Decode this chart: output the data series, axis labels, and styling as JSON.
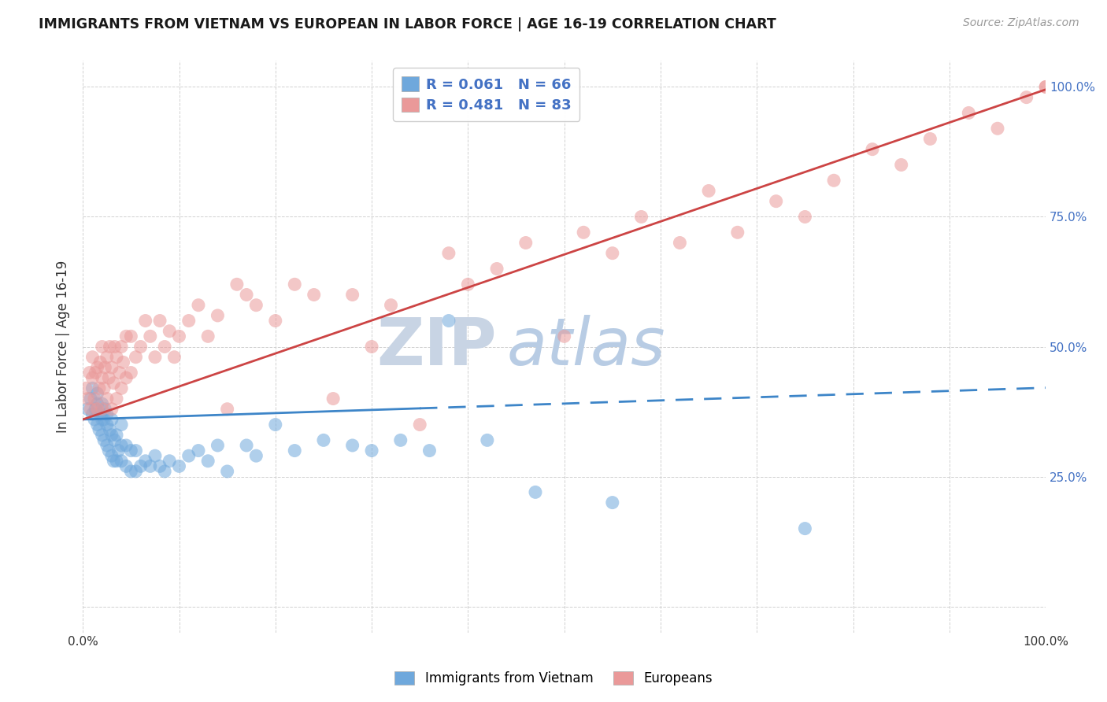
{
  "title": "IMMIGRANTS FROM VIETNAM VS EUROPEAN IN LABOR FORCE | AGE 16-19 CORRELATION CHART",
  "source": "Source: ZipAtlas.com",
  "ylabel": "In Labor Force | Age 16-19",
  "xlim": [
    0.0,
    1.0
  ],
  "ylim": [
    -0.05,
    1.05
  ],
  "xticks": [
    0.0,
    0.1,
    0.2,
    0.3,
    0.4,
    0.5,
    0.6,
    0.7,
    0.8,
    0.9,
    1.0
  ],
  "xticklabels": [
    "0.0%",
    "",
    "",
    "",
    "",
    "",
    "",
    "",
    "",
    "",
    "100.0%"
  ],
  "yticks": [
    0.0,
    0.25,
    0.5,
    0.75,
    1.0
  ],
  "yticklabels_right": [
    "",
    "25.0%",
    "50.0%",
    "75.0%",
    "100.0%"
  ],
  "legend_line1": "R = 0.061   N = 66",
  "legend_line2": "R = 0.481   N = 83",
  "color_vietnam": "#6fa8dc",
  "color_european": "#ea9999",
  "color_trendline_vietnam": "#3d85c8",
  "color_trendline_european": "#cc4444",
  "background_color": "#ffffff",
  "grid_color": "#cccccc",
  "vietnam_x": [
    0.005,
    0.008,
    0.01,
    0.01,
    0.012,
    0.013,
    0.015,
    0.015,
    0.015,
    0.017,
    0.018,
    0.02,
    0.02,
    0.02,
    0.022,
    0.022,
    0.023,
    0.025,
    0.025,
    0.025,
    0.027,
    0.028,
    0.03,
    0.03,
    0.03,
    0.032,
    0.033,
    0.035,
    0.035,
    0.037,
    0.04,
    0.04,
    0.04,
    0.045,
    0.045,
    0.05,
    0.05,
    0.055,
    0.055,
    0.06,
    0.065,
    0.07,
    0.075,
    0.08,
    0.085,
    0.09,
    0.1,
    0.11,
    0.12,
    0.13,
    0.14,
    0.15,
    0.17,
    0.18,
    0.2,
    0.22,
    0.25,
    0.28,
    0.3,
    0.33,
    0.36,
    0.38,
    0.42,
    0.47,
    0.55,
    0.75
  ],
  "vietnam_y": [
    0.38,
    0.4,
    0.37,
    0.42,
    0.36,
    0.38,
    0.35,
    0.39,
    0.41,
    0.34,
    0.37,
    0.33,
    0.36,
    0.39,
    0.32,
    0.36,
    0.38,
    0.31,
    0.35,
    0.37,
    0.3,
    0.34,
    0.29,
    0.33,
    0.36,
    0.28,
    0.32,
    0.28,
    0.33,
    0.3,
    0.28,
    0.31,
    0.35,
    0.27,
    0.31,
    0.26,
    0.3,
    0.26,
    0.3,
    0.27,
    0.28,
    0.27,
    0.29,
    0.27,
    0.26,
    0.28,
    0.27,
    0.29,
    0.3,
    0.28,
    0.31,
    0.26,
    0.31,
    0.29,
    0.35,
    0.3,
    0.32,
    0.31,
    0.3,
    0.32,
    0.3,
    0.55,
    0.32,
    0.22,
    0.2,
    0.15
  ],
  "european_x": [
    0.003,
    0.005,
    0.007,
    0.008,
    0.01,
    0.01,
    0.012,
    0.013,
    0.015,
    0.015,
    0.017,
    0.018,
    0.02,
    0.02,
    0.02,
    0.022,
    0.023,
    0.025,
    0.025,
    0.027,
    0.028,
    0.03,
    0.03,
    0.032,
    0.033,
    0.035,
    0.035,
    0.038,
    0.04,
    0.04,
    0.042,
    0.045,
    0.045,
    0.05,
    0.05,
    0.055,
    0.06,
    0.065,
    0.07,
    0.075,
    0.08,
    0.085,
    0.09,
    0.095,
    0.1,
    0.11,
    0.12,
    0.13,
    0.14,
    0.15,
    0.16,
    0.17,
    0.18,
    0.2,
    0.22,
    0.24,
    0.26,
    0.28,
    0.3,
    0.32,
    0.35,
    0.38,
    0.4,
    0.43,
    0.46,
    0.5,
    0.52,
    0.55,
    0.58,
    0.62,
    0.65,
    0.68,
    0.72,
    0.75,
    0.78,
    0.82,
    0.85,
    0.88,
    0.92,
    0.95,
    0.98,
    1.0,
    1.0
  ],
  "european_y": [
    0.42,
    0.4,
    0.45,
    0.38,
    0.44,
    0.48,
    0.4,
    0.45,
    0.38,
    0.46,
    0.42,
    0.47,
    0.38,
    0.44,
    0.5,
    0.42,
    0.46,
    0.4,
    0.48,
    0.44,
    0.5,
    0.38,
    0.46,
    0.43,
    0.5,
    0.4,
    0.48,
    0.45,
    0.42,
    0.5,
    0.47,
    0.44,
    0.52,
    0.45,
    0.52,
    0.48,
    0.5,
    0.55,
    0.52,
    0.48,
    0.55,
    0.5,
    0.53,
    0.48,
    0.52,
    0.55,
    0.58,
    0.52,
    0.56,
    0.38,
    0.62,
    0.6,
    0.58,
    0.55,
    0.62,
    0.6,
    0.4,
    0.6,
    0.5,
    0.58,
    0.35,
    0.68,
    0.62,
    0.65,
    0.7,
    0.52,
    0.72,
    0.68,
    0.75,
    0.7,
    0.8,
    0.72,
    0.78,
    0.75,
    0.82,
    0.88,
    0.85,
    0.9,
    0.95,
    0.92,
    0.98,
    1.0,
    1.0
  ],
  "vietnam_trend_solid_end": 0.35,
  "vietnam_trend_slope": 0.061,
  "vietnam_trend_intercept": 0.36,
  "european_trend_slope": 0.635,
  "european_trend_intercept": 0.36,
  "watermark_zip": "ZIP",
  "watermark_atlas": "atlas",
  "zip_color": "#c8d4e4",
  "atlas_color": "#b8cce4",
  "watermark_fontsize": 60
}
